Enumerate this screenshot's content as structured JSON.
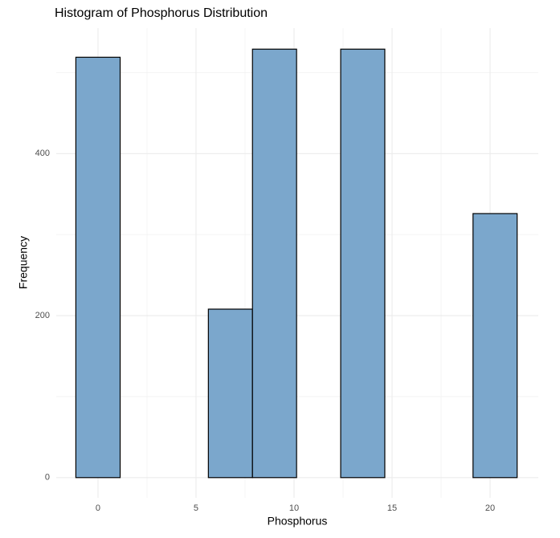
{
  "chart_data": {
    "type": "histogram",
    "title": "Histogram of Phosphorus Distribution",
    "x_label": "Phosphorus",
    "y_label": "Frequency",
    "bins": [
      -1.13,
      1.13,
      3.38,
      5.63,
      7.88,
      10.13,
      12.38,
      14.63,
      16.88,
      19.13,
      21.38
    ],
    "counts": [
      519,
      0,
      0,
      208,
      529,
      0,
      529,
      0,
      0,
      326
    ],
    "color": "#7ba7cc",
    "edge_color": "#000000",
    "xlim": [
      -2.13,
      22.46
    ],
    "ylim": [
      -25,
      555
    ],
    "xticks": [
      0,
      5,
      10,
      15,
      20
    ],
    "yticks": [
      0,
      200,
      400
    ],
    "minor_xticks": [
      2.5,
      7.5,
      12.5,
      17.5
    ],
    "minor_yticks": [
      100,
      300,
      500
    ],
    "grid": true
  }
}
